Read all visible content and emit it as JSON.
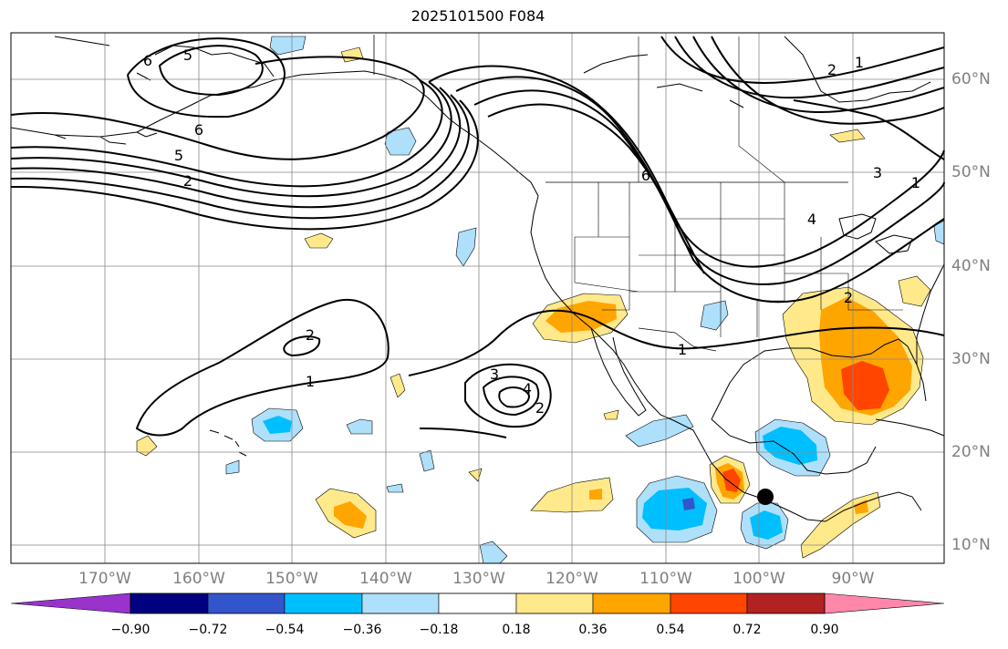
{
  "title": "2025101500 F084",
  "map": {
    "projection": "PlateCarree",
    "extent": {
      "lon": [
        -180,
        -80
      ],
      "lat": [
        8,
        65
      ]
    },
    "gridlines": true,
    "lon_labels": [
      "170°W",
      "160°W",
      "150°W",
      "140°W",
      "130°W",
      "120°W",
      "110°W",
      "100°W",
      "90°W"
    ],
    "lat_labels": [
      "60°N",
      "50°N",
      "40°N",
      "30°N",
      "20°N",
      "10°N"
    ],
    "contour_line_color": "#000000",
    "contour_labels": [
      {
        "text": "6"
      },
      {
        "text": "5"
      },
      {
        "text": "6"
      },
      {
        "text": "5"
      },
      {
        "text": "2"
      },
      {
        "text": "6"
      },
      {
        "text": "2"
      },
      {
        "text": "1"
      },
      {
        "text": "3"
      },
      {
        "text": "1"
      },
      {
        "text": "4"
      },
      {
        "text": "2"
      },
      {
        "text": "1"
      },
      {
        "text": "3"
      },
      {
        "text": "4"
      },
      {
        "text": "2"
      },
      {
        "text": "1"
      }
    ],
    "marker": {
      "type": "filled-circle",
      "color": "#000000",
      "lon": -99.8,
      "lat": 15.3
    }
  },
  "colorbar": {
    "extend": "both",
    "ticks": [
      "−0.90",
      "−0.72",
      "−0.54",
      "−0.36",
      "−0.18",
      "0.18",
      "0.36",
      "0.54",
      "0.72",
      "0.90"
    ],
    "colors": [
      "#9933cc",
      "#000080",
      "#3355cc",
      "#00bfff",
      "#aee0fb",
      "#ffffff",
      "#ffe98a",
      "#ffa500",
      "#ff4500",
      "#b22222",
      "#ff88aa"
    ]
  }
}
